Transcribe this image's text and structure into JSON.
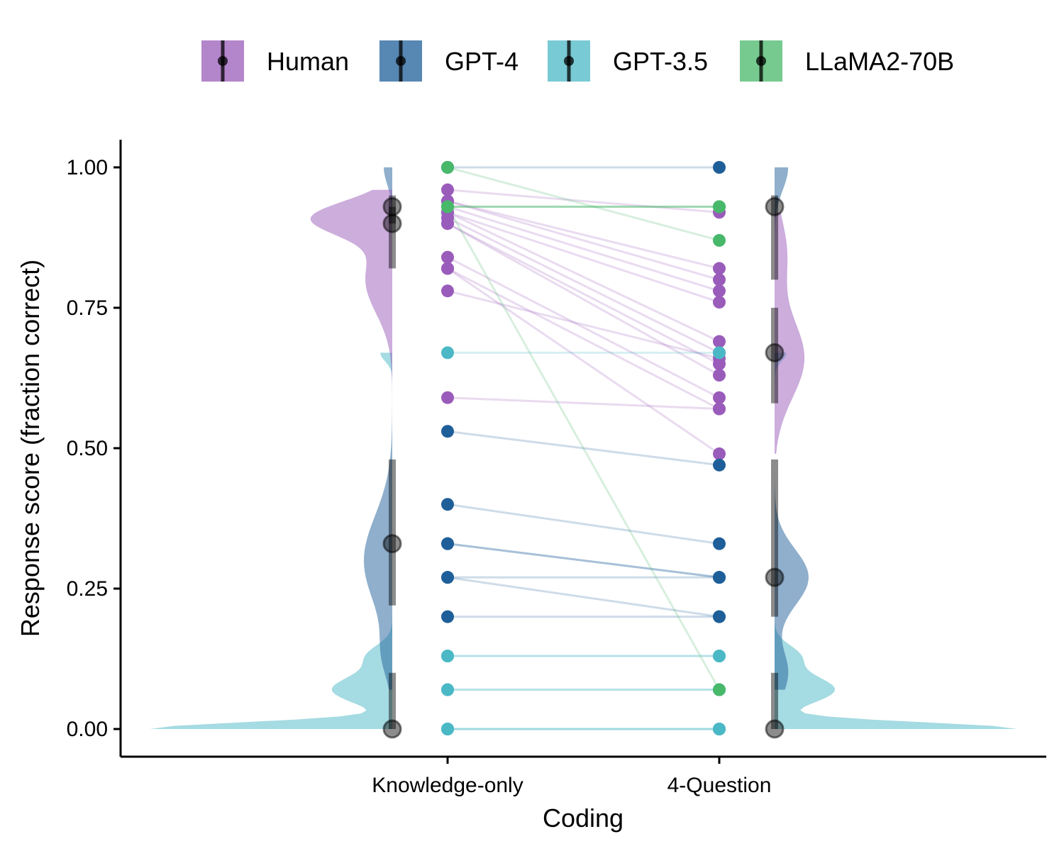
{
  "chart_data": {
    "type": "scatter",
    "subtype": "raincloud-paired",
    "xlabel": "Coding",
    "ylabel": "Response score (fraction correct)",
    "categories": [
      "Knowledge-only",
      "4-Question"
    ],
    "ylim": [
      -0.05,
      1.05
    ],
    "yticks": [
      "0.00",
      "0.25",
      "0.50",
      "0.75",
      "1.00"
    ],
    "ytick_values": [
      0,
      0.25,
      0.5,
      0.75,
      1.0
    ],
    "legend_position": "top",
    "grid": false,
    "legend": [
      {
        "name": "Human",
        "color": "#9a5cba"
      },
      {
        "name": "GPT-4",
        "color": "#1f5f99"
      },
      {
        "name": "GPT-3.5",
        "color": "#4bb8c6"
      },
      {
        "name": "LLaMA2-70B",
        "color": "#48b86a"
      }
    ],
    "series": [
      {
        "name": "Human",
        "color": "#9a5cba",
        "pairs": [
          [
            0.96,
            0.92
          ],
          [
            0.94,
            0.82
          ],
          [
            0.94,
            0.8
          ],
          [
            0.93,
            0.78
          ],
          [
            0.92,
            0.76
          ],
          [
            0.92,
            0.69
          ],
          [
            0.91,
            0.67
          ],
          [
            0.9,
            0.65
          ],
          [
            0.9,
            0.63
          ],
          [
            0.84,
            0.59
          ],
          [
            0.82,
            0.57
          ],
          [
            0.82,
            0.49
          ],
          [
            0.78,
            0.66
          ],
          [
            0.59,
            0.57
          ]
        ],
        "summary": {
          "Knowledge-only": {
            "point": 0.9,
            "range": [
              0.82,
              0.93
            ]
          },
          "4-Question": {
            "point": 0.67,
            "range": [
              0.58,
              0.75
            ]
          }
        }
      },
      {
        "name": "GPT-4",
        "color": "#1f5f99",
        "pairs": [
          [
            1.0,
            1.0
          ],
          [
            0.53,
            0.47
          ],
          [
            0.4,
            0.33
          ],
          [
            0.33,
            0.27
          ],
          [
            0.33,
            0.27
          ],
          [
            0.27,
            0.2
          ],
          [
            0.27,
            0.27
          ],
          [
            0.2,
            0.2
          ]
        ],
        "summary": {
          "Knowledge-only": {
            "point": 0.33,
            "range": [
              0.22,
              0.48
            ]
          },
          "4-Question": {
            "point": 0.27,
            "range": [
              0.2,
              0.48
            ]
          }
        }
      },
      {
        "name": "GPT-3.5",
        "color": "#4bb8c6",
        "pairs": [
          [
            0.67,
            0.67
          ],
          [
            0.13,
            0.13
          ],
          [
            0.13,
            0.13
          ],
          [
            0.07,
            0.07
          ],
          [
            0.07,
            0.07
          ],
          [
            0.0,
            0.0
          ],
          [
            0.0,
            0.0
          ],
          [
            0.0,
            0.0
          ]
        ],
        "summary": {
          "Knowledge-only": {
            "point": 0.0,
            "range": [
              0.0,
              0.1
            ]
          },
          "4-Question": {
            "point": 0.0,
            "range": [
              0.0,
              0.1
            ]
          }
        }
      },
      {
        "name": "LLaMA2-70B",
        "color": "#48b86a",
        "pairs": [
          [
            0.93,
            0.93
          ],
          [
            0.93,
            0.93
          ],
          [
            0.93,
            0.93
          ],
          [
            1.0,
            0.87
          ],
          [
            0.93,
            0.07
          ]
        ],
        "summary": {
          "Knowledge-only": {
            "point": 0.93,
            "range": [
              0.9,
              0.95
            ]
          },
          "4-Question": {
            "point": 0.93,
            "range": [
              0.8,
              0.95
            ]
          }
        }
      }
    ]
  }
}
